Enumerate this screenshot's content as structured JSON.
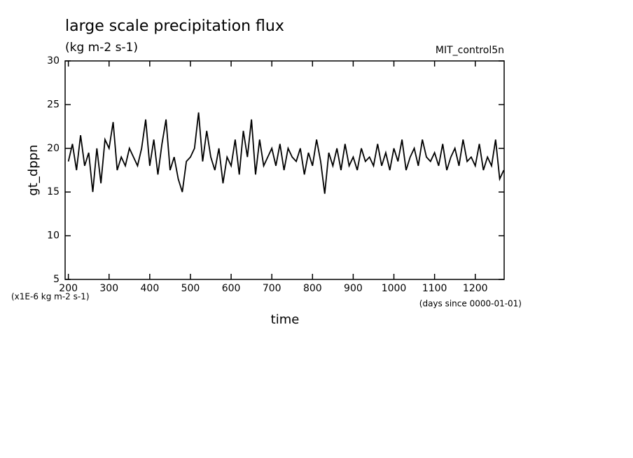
{
  "chart_data": {
    "type": "line",
    "title": "large scale precipitation flux",
    "subtitle": "(kg m-2 s-1)",
    "annotation": "MIT_control5n",
    "y_label": "gt_dppn",
    "x_label": "time",
    "y_unit_note": "(x1E-6 kg m-2 s-1)",
    "x_unit_note": "(days since 0000-01-01)",
    "xlim": [
      192,
      1271
    ],
    "ylim": [
      5,
      30
    ],
    "xticks": [
      200,
      300,
      400,
      500,
      600,
      700,
      800,
      900,
      1000,
      1100,
      1200
    ],
    "yticks": [
      5,
      10,
      15,
      20,
      25,
      30
    ],
    "x": [
      200,
      210,
      220,
      230,
      240,
      250,
      260,
      270,
      280,
      290,
      300,
      310,
      320,
      330,
      340,
      350,
      360,
      370,
      380,
      390,
      400,
      410,
      420,
      430,
      440,
      450,
      460,
      470,
      480,
      490,
      500,
      510,
      520,
      530,
      540,
      550,
      560,
      570,
      580,
      590,
      600,
      610,
      620,
      630,
      640,
      650,
      660,
      670,
      680,
      690,
      700,
      710,
      720,
      730,
      740,
      750,
      760,
      770,
      780,
      790,
      800,
      810,
      820,
      830,
      840,
      850,
      860,
      870,
      880,
      890,
      900,
      910,
      920,
      930,
      940,
      950,
      960,
      970,
      980,
      990,
      1000,
      1010,
      1020,
      1030,
      1040,
      1050,
      1060,
      1070,
      1080,
      1090,
      1100,
      1110,
      1120,
      1130,
      1140,
      1150,
      1160,
      1170,
      1180,
      1190,
      1200,
      1210,
      1220,
      1230,
      1240,
      1250,
      1260,
      1270
    ],
    "series": [
      {
        "color": "#000000",
        "values": [
          18.5,
          20.5,
          17.5,
          21.5,
          18,
          19.5,
          15,
          20,
          16,
          21,
          20,
          23,
          17.5,
          19,
          18,
          20,
          19,
          18,
          20,
          23.3,
          18,
          21,
          17,
          20.5,
          23.3,
          17.5,
          19,
          16.5,
          15,
          18.5,
          19,
          20,
          24.1,
          18.5,
          22,
          19,
          17.5,
          20,
          16,
          19,
          18,
          21,
          17,
          22,
          19,
          23.3,
          17,
          21,
          18,
          19,
          20,
          18,
          20.5,
          17.5,
          20,
          19,
          18.5,
          20,
          17,
          19.5,
          18,
          21,
          18.5,
          14.8,
          19.5,
          18,
          20,
          17.5,
          20.5,
          18,
          19,
          17.5,
          20,
          18.5,
          19,
          18,
          20.5,
          18,
          19.5,
          17.5,
          20,
          18.5,
          21,
          17.5,
          19,
          20,
          18,
          21,
          19,
          18.5,
          19.5,
          18,
          20.5,
          17.5,
          19,
          20,
          18,
          21,
          18.5,
          19,
          18,
          20.5,
          17.5,
          19,
          18,
          21,
          16.5,
          17.5
        ]
      }
    ]
  }
}
